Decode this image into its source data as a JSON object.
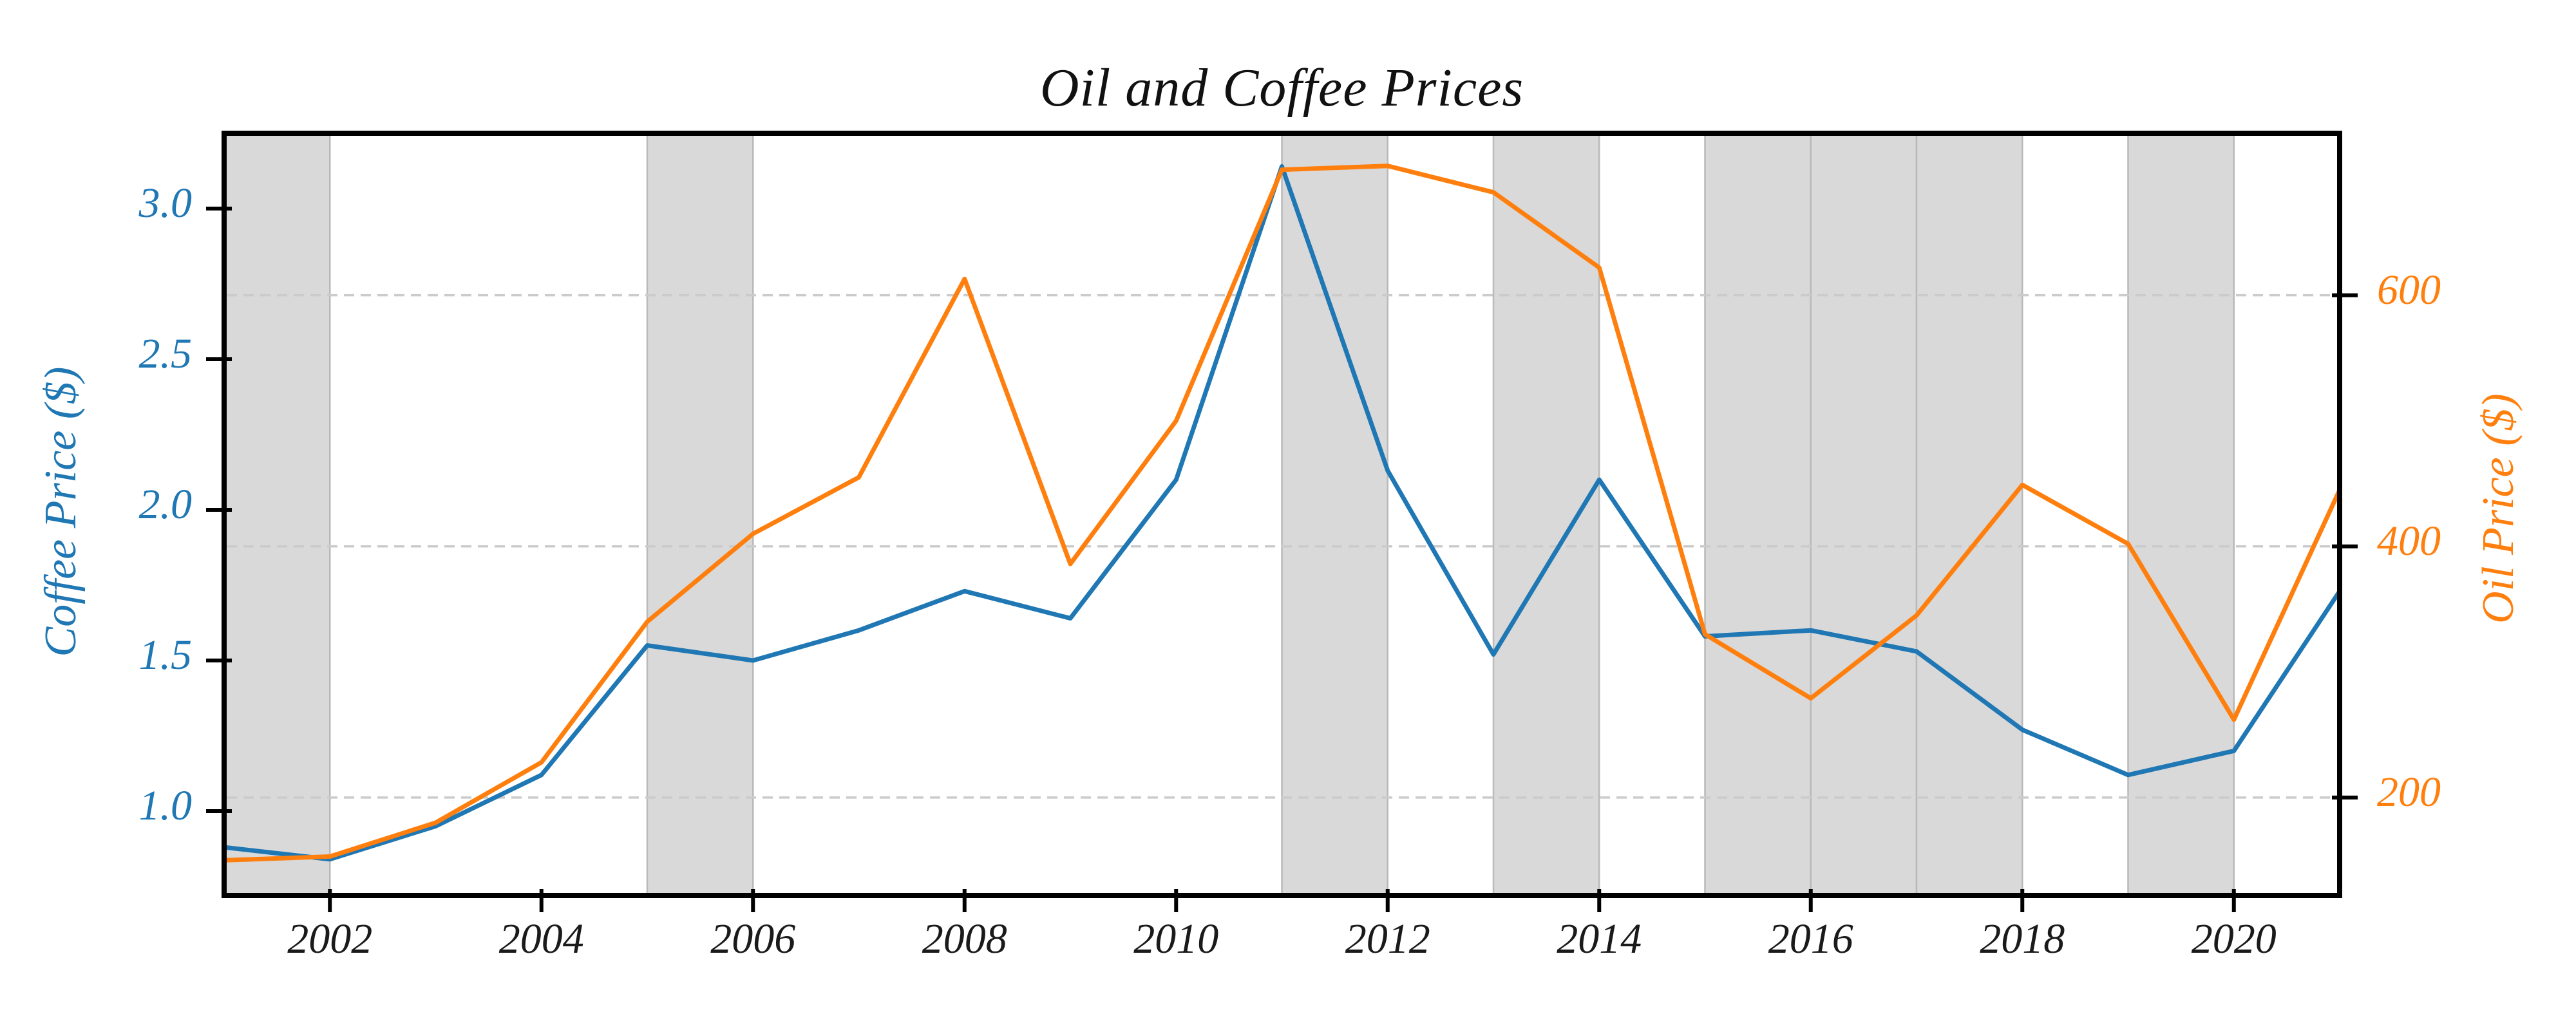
{
  "title": "Oil and Coffee Prices",
  "chart_data": {
    "type": "line",
    "title": "Oil and Coffee Prices",
    "x": [
      2001,
      2002,
      2003,
      2004,
      2005,
      2006,
      2007,
      2008,
      2009,
      2010,
      2011,
      2012,
      2013,
      2014,
      2015,
      2016,
      2017,
      2018,
      2019,
      2020,
      2021
    ],
    "series": [
      {
        "name": "Coffee Price ($)",
        "axis": "left",
        "color": "#1f77b4",
        "values": [
          0.88,
          0.84,
          0.95,
          1.12,
          1.55,
          1.5,
          1.6,
          1.73,
          1.64,
          2.1,
          3.14,
          2.13,
          1.52,
          2.1,
          1.58,
          1.6,
          1.53,
          1.27,
          1.12,
          1.2,
          1.73
        ]
      },
      {
        "name": "Oil Price ($)",
        "axis": "right",
        "color": "#ff7f0e",
        "values": [
          150,
          153,
          180,
          228,
          340,
          410,
          455,
          613,
          386,
          500,
          700,
          703,
          682,
          622,
          330,
          279,
          345,
          449,
          402,
          262,
          445
        ]
      }
    ],
    "xlabel": "",
    "x_axis": {
      "range": [
        2001,
        2021
      ],
      "ticks": [
        2002,
        2004,
        2006,
        2008,
        2010,
        2012,
        2014,
        2016,
        2018,
        2020
      ]
    },
    "left_axis": {
      "label": "Coffee Price ($)",
      "range": [
        0.72,
        3.25
      ],
      "ticks": [
        1.0,
        1.5,
        2.0,
        2.5,
        3.0
      ],
      "color": "#1f77b4"
    },
    "right_axis": {
      "label": "Oil Price ($)",
      "range": [
        122,
        729
      ],
      "ticks": [
        200,
        400,
        600
      ],
      "color": "#ff7f0e"
    },
    "grid": {
      "orientation": "horizontal",
      "at": "right-axis-ticks",
      "style": "dashed",
      "color": "#cbcbcb"
    },
    "shaded_spans": [
      [
        2001,
        2002
      ],
      [
        2005,
        2006
      ],
      [
        2011,
        2012
      ],
      [
        2013,
        2014
      ],
      [
        2015,
        2016
      ],
      [
        2016,
        2017
      ],
      [
        2017,
        2018
      ],
      [
        2019,
        2020
      ]
    ],
    "band_color": "#d9d9d9",
    "band_edge_color": "#b9b9b9",
    "legend": "none"
  }
}
